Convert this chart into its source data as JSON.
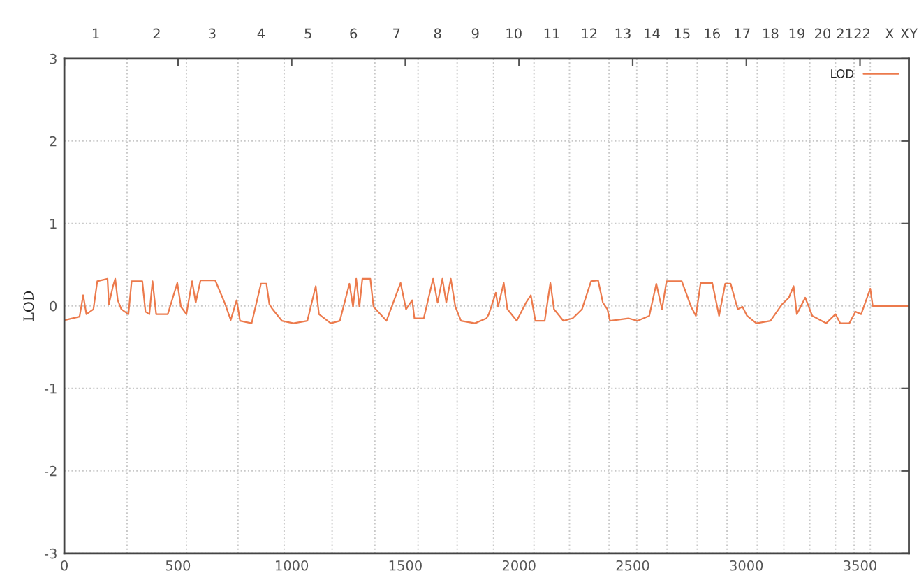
{
  "chart_data": {
    "type": "line",
    "ylabel": "LOD",
    "legend": "top right",
    "grid": "y",
    "line_style": "solid",
    "marker": "none",
    "xlim": [
      0,
      3715
    ],
    "xticks": [
      0,
      500,
      1000,
      1500,
      2000,
      2500,
      3000,
      3500
    ],
    "ylim": [
      -3,
      3
    ],
    "yticks": [
      -3,
      -2,
      -1,
      0,
      1,
      2,
      3
    ],
    "annotations": [
      "1",
      "2",
      "3",
      "4",
      "5",
      "6",
      "7",
      "8",
      "9",
      "10",
      "11",
      "12",
      "13",
      "14",
      "15",
      "16",
      "17",
      "18",
      "19",
      "20",
      "21",
      "22",
      "X",
      "XY"
    ],
    "ref_lines": [
      {
        "axis": "x",
        "value": 276,
        "color": "#c8c8c8",
        "line_style": "dotted"
      },
      {
        "axis": "x",
        "value": 537,
        "color": "#c8c8c8",
        "line_style": "dotted"
      },
      {
        "axis": "x",
        "value": 764,
        "color": "#c8c8c8",
        "line_style": "dotted"
      },
      {
        "axis": "x",
        "value": 967,
        "color": "#c8c8c8",
        "line_style": "dotted"
      },
      {
        "axis": "x",
        "value": 1178,
        "color": "#c8c8c8",
        "line_style": "dotted"
      },
      {
        "axis": "x",
        "value": 1366,
        "color": "#c8c8c8",
        "line_style": "dotted"
      },
      {
        "axis": "x",
        "value": 1556,
        "color": "#c8c8c8",
        "line_style": "dotted"
      },
      {
        "axis": "x",
        "value": 1728,
        "color": "#c8c8c8",
        "line_style": "dotted"
      },
      {
        "axis": "x",
        "value": 1888,
        "color": "#c8c8c8",
        "line_style": "dotted"
      },
      {
        "axis": "x",
        "value": 2066,
        "color": "#c8c8c8",
        "line_style": "dotted"
      },
      {
        "axis": "x",
        "value": 2222,
        "color": "#c8c8c8",
        "line_style": "dotted"
      },
      {
        "axis": "x",
        "value": 2396,
        "color": "#c8c8c8",
        "line_style": "dotted"
      },
      {
        "axis": "x",
        "value": 2518,
        "color": "#c8c8c8",
        "line_style": "dotted"
      },
      {
        "axis": "x",
        "value": 2651,
        "color": "#c8c8c8",
        "line_style": "dotted"
      },
      {
        "axis": "x",
        "value": 2784,
        "color": "#c8c8c8",
        "line_style": "dotted"
      },
      {
        "axis": "x",
        "value": 2915,
        "color": "#c8c8c8",
        "line_style": "dotted"
      },
      {
        "axis": "x",
        "value": 3048,
        "color": "#c8c8c8",
        "line_style": "dotted"
      },
      {
        "axis": "x",
        "value": 3165,
        "color": "#c8c8c8",
        "line_style": "dotted"
      },
      {
        "axis": "x",
        "value": 3279,
        "color": "#c8c8c8",
        "line_style": "dotted"
      },
      {
        "axis": "x",
        "value": 3392,
        "color": "#c8c8c8",
        "line_style": "dotted"
      },
      {
        "axis": "x",
        "value": 3474,
        "color": "#c8c8c8",
        "line_style": "dotted"
      },
      {
        "axis": "x",
        "value": 3545,
        "color": "#c8c8c8",
        "line_style": "dotted"
      }
    ],
    "series": [
      {
        "name": "LOD",
        "color": "#ec7a4c",
        "x": [
          5,
          67,
          83,
          97,
          128,
          145,
          190,
          196,
          214,
          224,
          235,
          251,
          282,
          296,
          343,
          357,
          374,
          388,
          404,
          455,
          497,
          513,
          537,
          562,
          578,
          599,
          664,
          705,
          732,
          758,
          773,
          824,
          865,
          889,
          902,
          916,
          957,
          1008,
          1069,
          1106,
          1120,
          1172,
          1212,
          1254,
          1270,
          1284,
          1298,
          1311,
          1346,
          1360,
          1417,
          1479,
          1503,
          1530,
          1540,
          1581,
          1622,
          1642,
          1663,
          1680,
          1700,
          1720,
          1745,
          1806,
          1857,
          1867,
          1898,
          1908,
          1933,
          1949,
          1990,
          2031,
          2052,
          2072,
          2113,
          2138,
          2154,
          2195,
          2236,
          2277,
          2317,
          2348,
          2369,
          2389,
          2400,
          2481,
          2522,
          2573,
          2604,
          2629,
          2649,
          2716,
          2757,
          2778,
          2799,
          2850,
          2880,
          2907,
          2931,
          2962,
          2983,
          3003,
          3044,
          3106,
          3157,
          3187,
          3208,
          3222,
          3259,
          3290,
          3351,
          3392,
          3413,
          3453,
          3480,
          3505,
          3545,
          3556,
          3715
        ],
        "values": [
          -0.17,
          -0.13,
          0.13,
          -0.1,
          -0.04,
          0.3,
          0.33,
          0.02,
          0.24,
          0.33,
          0.07,
          -0.04,
          -0.1,
          0.3,
          0.3,
          -0.07,
          -0.1,
          0.3,
          -0.1,
          -0.1,
          0.28,
          -0.01,
          -0.1,
          0.3,
          0.04,
          0.31,
          0.31,
          0.04,
          -0.17,
          0.07,
          -0.18,
          -0.21,
          0.27,
          0.27,
          0.02,
          -0.04,
          -0.18,
          -0.21,
          -0.18,
          0.24,
          -0.1,
          -0.21,
          -0.18,
          0.27,
          -0.01,
          0.33,
          -0.01,
          0.33,
          0.33,
          -0.01,
          -0.18,
          0.28,
          -0.04,
          0.07,
          -0.15,
          -0.15,
          0.33,
          0.04,
          0.33,
          0.04,
          0.33,
          -0.01,
          -0.18,
          -0.21,
          -0.15,
          -0.1,
          0.16,
          -0.01,
          0.28,
          -0.04,
          -0.18,
          0.04,
          0.13,
          -0.18,
          -0.18,
          0.28,
          -0.04,
          -0.18,
          -0.15,
          -0.04,
          0.3,
          0.31,
          0.04,
          -0.04,
          -0.18,
          -0.15,
          -0.18,
          -0.12,
          0.27,
          -0.04,
          0.3,
          0.3,
          -0.01,
          -0.12,
          0.28,
          0.28,
          -0.12,
          0.27,
          0.27,
          -0.04,
          -0.01,
          -0.12,
          -0.21,
          -0.18,
          0.02,
          0.1,
          0.24,
          -0.1,
          0.1,
          -0.12,
          -0.21,
          -0.1,
          -0.21,
          -0.21,
          -0.07,
          -0.1,
          0.21,
          0,
          0
        ]
      }
    ]
  }
}
